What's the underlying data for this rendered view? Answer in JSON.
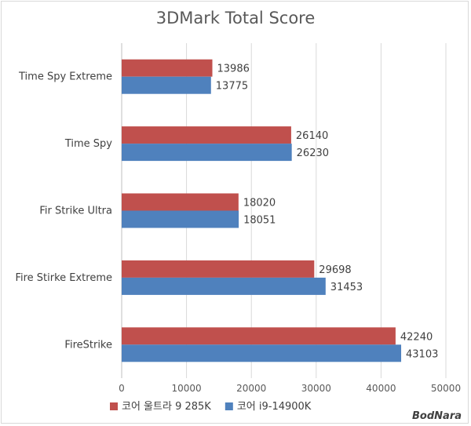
{
  "chart_data": {
    "type": "bar",
    "orientation": "horizontal",
    "title": "3DMark Total Score",
    "categories": [
      "Time Spy Extreme",
      "Time Spy",
      "Fir Strike Ultra",
      "Fire Stirke Extreme",
      "FireStrike"
    ],
    "series": [
      {
        "name": "코어 울트라 9 285K",
        "color": "#c0504d",
        "values": [
          13986,
          26140,
          18020,
          29698,
          42240
        ]
      },
      {
        "name": "코어 i9-14900K",
        "color": "#4f81bd",
        "values": [
          13775,
          26230,
          18051,
          31453,
          43103
        ]
      }
    ],
    "xlim": [
      0,
      50000
    ],
    "xticks": [
      0,
      10000,
      20000,
      30000,
      40000,
      50000
    ],
    "grid": true,
    "legend": "bottom"
  },
  "watermark": "BodNara"
}
